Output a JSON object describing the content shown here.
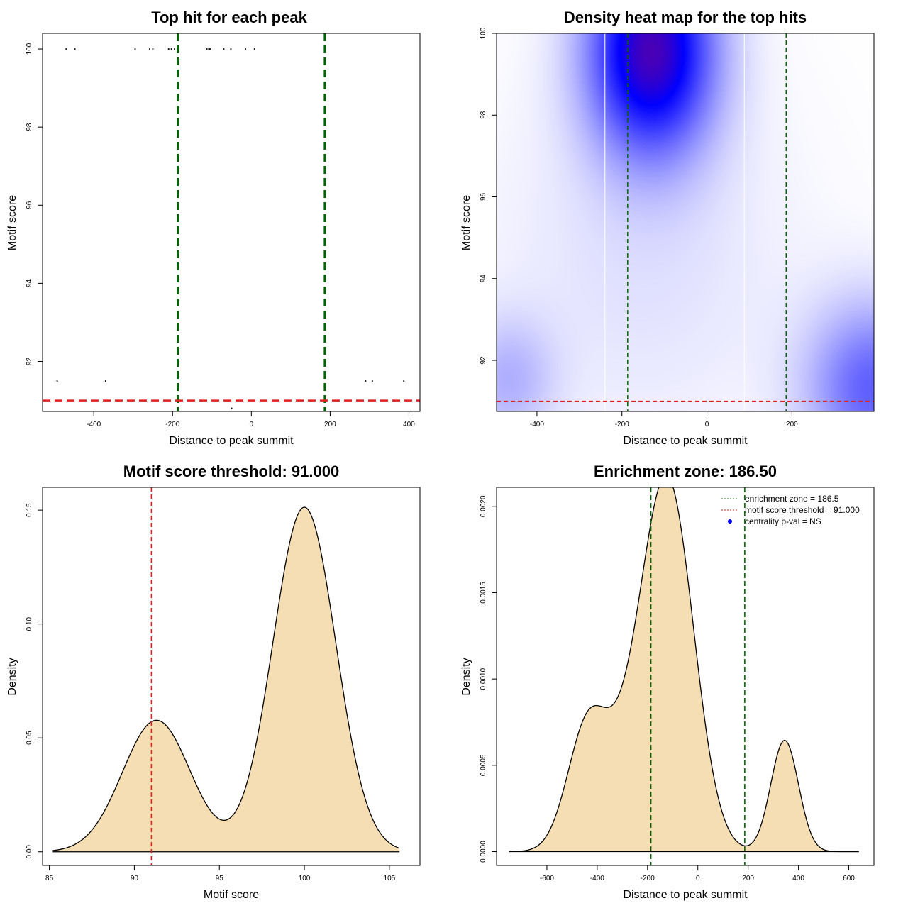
{
  "colors": {
    "threshold_line": "#e0201b",
    "zone_line": "#006400",
    "density_fill": "#f5deb3",
    "heat_low": "#ffffff",
    "heat_mid": "#0000ff",
    "heat_high": "#ff0000"
  },
  "chart_data": [
    {
      "id": "top-hits",
      "type": "scatter",
      "title": "Top hit for each peak",
      "xlabel": "Distance to peak summit",
      "ylabel": "Motif score",
      "xlim": [
        -530,
        428
      ],
      "ylim": [
        90.72,
        100.4
      ],
      "xticks": [
        -400,
        -200,
        0,
        200,
        400
      ],
      "yticks": [
        92,
        94,
        96,
        98,
        100
      ],
      "points": [
        {
          "x": -493,
          "y": 91.5
        },
        {
          "x": -470,
          "y": 100
        },
        {
          "x": -448,
          "y": 100
        },
        {
          "x": -370,
          "y": 91.5
        },
        {
          "x": -295,
          "y": 100
        },
        {
          "x": -258,
          "y": 100
        },
        {
          "x": -250,
          "y": 100
        },
        {
          "x": -210,
          "y": 100
        },
        {
          "x": -203,
          "y": 100
        },
        {
          "x": -195,
          "y": 100
        },
        {
          "x": -188,
          "y": 100
        },
        {
          "x": -113,
          "y": 100
        },
        {
          "x": -108,
          "y": 100
        },
        {
          "x": -105,
          "y": 100
        },
        {
          "x": -70,
          "y": 100
        },
        {
          "x": -52,
          "y": 100
        },
        {
          "x": -50,
          "y": 90.8
        },
        {
          "x": -15,
          "y": 100
        },
        {
          "x": 8,
          "y": 100
        },
        {
          "x": 290,
          "y": 91.5
        },
        {
          "x": 307,
          "y": 91.5
        },
        {
          "x": 387,
          "y": 91.5
        }
      ],
      "vlines": [
        -186.5,
        186.5
      ],
      "hline": 91.0
    },
    {
      "id": "heatmap",
      "type": "heatmap",
      "title": "Density heat map for the top hits",
      "xlabel": "Distance to peak summit",
      "ylabel": "Motif score",
      "xlim": [
        -495,
        393
      ],
      "ylim": [
        90.75,
        100
      ],
      "xticks": [
        -400,
        -200,
        0,
        200
      ],
      "yticks": [
        92,
        94,
        96,
        98,
        100
      ],
      "vlines": [
        -186.5,
        186.5
      ],
      "hline": 91.0,
      "blobs": [
        {
          "x": -130,
          "y": 99.6,
          "sx": 105,
          "sy": 1.8,
          "w": 1.25
        },
        {
          "x": 390,
          "y": 91.3,
          "sx": 110,
          "sy": 1.5,
          "w": 0.62
        },
        {
          "x": -470,
          "y": 91.5,
          "sx": 80,
          "sy": 1.1,
          "w": 0.28
        },
        {
          "x": -150,
          "y": 94.5,
          "sx": 250,
          "sy": 3.2,
          "w": 0.12
        }
      ]
    },
    {
      "id": "score-density",
      "type": "area",
      "title": "Motif score threshold: 91.000",
      "xlabel": "Motif score",
      "ylabel": "Density",
      "xlim": [
        84.6,
        106.8
      ],
      "ylim": [
        -0.006,
        0.16
      ],
      "xticks": [
        85,
        90,
        95,
        100,
        105
      ],
      "yticks": [
        0.0,
        0.05,
        0.1,
        0.15
      ],
      "ytick_labels": [
        "0.00",
        "0.05",
        "0.10",
        "0.15"
      ],
      "x_range": [
        85.2,
        105.6
      ],
      "components": [
        {
          "mu": 91.3,
          "sd": 2.0,
          "w": 0.2895
        },
        {
          "mu": 100.0,
          "sd": 1.85,
          "w": 0.7015
        }
      ],
      "vline": 91.0
    },
    {
      "id": "distance-density",
      "type": "area",
      "title": "Enrichment zone: 186.50",
      "xlabel": "Distance to peak summit",
      "ylabel": "Density",
      "xlim": [
        -800,
        700
      ],
      "ylim": [
        -8e-05,
        0.00211
      ],
      "xticks": [
        -600,
        -400,
        -200,
        0,
        200,
        400,
        600
      ],
      "yticks": [
        0.0,
        0.0005,
        0.001,
        0.0015,
        0.002
      ],
      "ytick_labels": [
        "0.0000",
        "0.0005",
        "0.0010",
        "0.0015",
        "0.0020"
      ],
      "x_range": [
        -750,
        640
      ],
      "components": [
        {
          "mu": -110,
          "sd": 100,
          "w": 0.4773
        },
        {
          "mu": -440,
          "sd": 80,
          "w": 0.1351
        },
        {
          "mu": 345,
          "sd": 55,
          "w": 0.0889
        },
        {
          "mu": -250,
          "sd": 110,
          "w": 0.1558
        }
      ],
      "vlines": [
        -186.5,
        186.5
      ],
      "legend": {
        "position": "top-right",
        "items": [
          "enrichment zone = 186.5",
          "motif score threshold = 91.000",
          "centrality p-val = NS"
        ]
      }
    }
  ]
}
